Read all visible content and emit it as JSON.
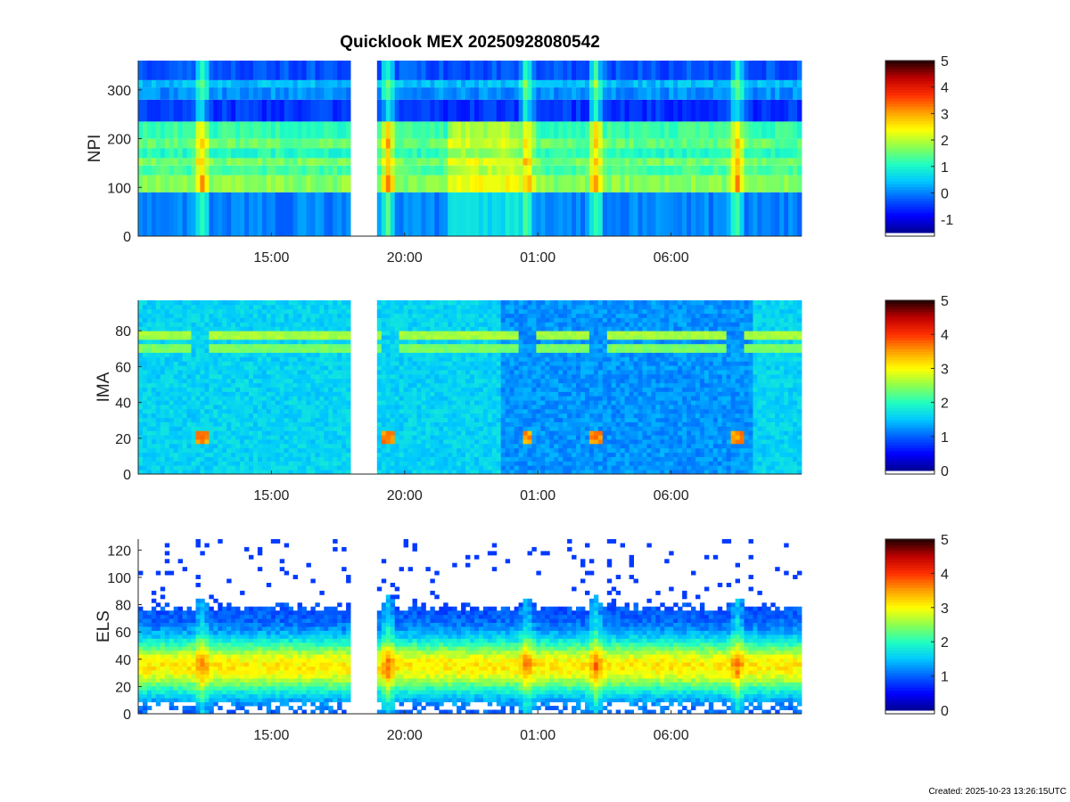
{
  "title": "Quicklook MEX 20250928080542",
  "footer": "Created: 2025-10-23 13:26:15UTC",
  "colormap": [
    "#00008f",
    "#0000ff",
    "#0060ff",
    "#00c8ff",
    "#20ffc0",
    "#8cff50",
    "#ffff00",
    "#ffa000",
    "#ff3000",
    "#c00000",
    "#200000"
  ],
  "chart_data": [
    {
      "type": "heatmap",
      "name": "NPI",
      "ylabel": "NPI",
      "xticks": [
        "15:00",
        "20:00",
        "01:00",
        "06:00"
      ],
      "ylim": [
        0,
        360
      ],
      "yticks": [
        0,
        100,
        200,
        300
      ],
      "colorbar": {
        "range": [
          -1.5,
          5
        ],
        "ticks": [
          -1,
          0,
          1,
          2,
          3,
          4,
          5
        ]
      },
      "data_gaps": [
        [
          17.9,
          19.0
        ]
      ],
      "bands": [
        {
          "y": [
            0,
            90
          ],
          "level": 0.0
        },
        {
          "y": [
            90,
            125
          ],
          "level": 1.7
        },
        {
          "y": [
            125,
            145
          ],
          "level": 1.3
        },
        {
          "y": [
            145,
            160
          ],
          "level": 1.6
        },
        {
          "y": [
            160,
            180
          ],
          "level": 1.1
        },
        {
          "y": [
            180,
            200
          ],
          "level": 1.5
        },
        {
          "y": [
            200,
            235
          ],
          "level": 1.2
        },
        {
          "y": [
            235,
            280
          ],
          "level": -0.5
        },
        {
          "y": [
            280,
            305
          ],
          "level": 0.1
        },
        {
          "y": [
            305,
            320
          ],
          "level": 0.4
        },
        {
          "y": [
            320,
            360
          ],
          "level": -0.3
        }
      ]
    },
    {
      "type": "heatmap",
      "name": "IMA",
      "ylabel": "IMA",
      "xticks": [
        "15:00",
        "20:00",
        "01:00",
        "06:00"
      ],
      "ylim": [
        0,
        97
      ],
      "yticks": [
        0,
        20,
        40,
        60,
        80
      ],
      "colorbar": {
        "range": [
          0,
          5
        ],
        "ticks": [
          0,
          1,
          2,
          3,
          4,
          5
        ]
      },
      "data_gaps": [
        [
          17.9,
          19.0
        ]
      ],
      "background_level": 1.6,
      "ion_lines": [
        {
          "y": 78,
          "level": 2.6
        },
        {
          "y": 70,
          "level": 2.4
        }
      ]
    },
    {
      "type": "heatmap",
      "name": "ELS",
      "ylabel": "ELS",
      "xticks": [
        "15:00",
        "20:00",
        "01:00",
        "06:00"
      ],
      "ylim": [
        0,
        128
      ],
      "yticks": [
        0,
        20,
        40,
        60,
        80,
        100,
        120
      ],
      "colorbar": {
        "range": [
          0,
          5
        ],
        "ticks": [
          0,
          1,
          2,
          3,
          4,
          5
        ]
      },
      "data_gaps": [
        [
          17.9,
          19.0
        ]
      ],
      "peak_channel": 35,
      "peak_level": 2.2
    }
  ]
}
